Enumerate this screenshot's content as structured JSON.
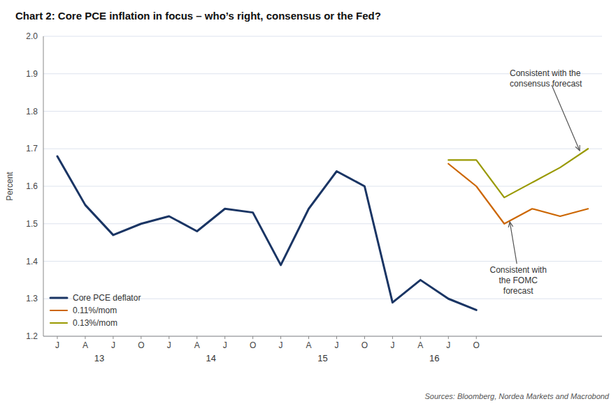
{
  "chart_data": {
    "type": "line",
    "title": "Chart 2: Core PCE inflation in focus – who’s right, consensus or the Fed?",
    "ylabel": "Percent",
    "source": "Sources: Bloomberg, Nordea Markets and Macrobond",
    "categories": [
      "J",
      "A",
      "J",
      "O",
      "J",
      "A",
      "J",
      "O",
      "J",
      "A",
      "J",
      "O",
      "J",
      "A",
      "J",
      "O",
      null,
      null,
      null,
      null
    ],
    "x_groups": [
      "13",
      "14",
      "15",
      "16"
    ],
    "series": [
      {
        "name": "Core PCE deflator",
        "color": "#1a3564",
        "values": [
          1.68,
          1.55,
          1.47,
          1.5,
          1.52,
          1.48,
          1.54,
          1.53,
          1.39,
          1.54,
          1.64,
          1.6,
          1.29,
          1.35,
          1.3,
          1.27,
          null,
          null,
          null,
          null
        ]
      },
      {
        "name": "0.11%/mom",
        "color": "#cc6600",
        "values": [
          null,
          null,
          null,
          null,
          null,
          null,
          null,
          null,
          null,
          null,
          null,
          null,
          null,
          null,
          1.66,
          1.6,
          1.5,
          1.54,
          1.52,
          1.54
        ]
      },
      {
        "name": "0.13%/mom",
        "color": "#999900",
        "values": [
          null,
          null,
          null,
          null,
          null,
          null,
          null,
          null,
          null,
          null,
          null,
          null,
          null,
          null,
          1.67,
          1.67,
          1.57,
          1.61,
          1.65,
          1.7
        ]
      }
    ],
    "ylim": [
      1.2,
      2.0
    ],
    "yticks": [
      1.2,
      1.3,
      1.4,
      1.5,
      1.6,
      1.7,
      1.8,
      1.9,
      {
        "value": 2.0,
        "label": "2.0"
      }
    ],
    "grid": true,
    "legend": "lower left",
    "annotations": [
      {
        "text": "Consistent with the\nconsensus forecast",
        "x": 18.7,
        "y": 1.695
      },
      {
        "text": "Consistent with\nthe FOMC\nforecast",
        "x": 16.2,
        "y": 1.505
      }
    ]
  }
}
